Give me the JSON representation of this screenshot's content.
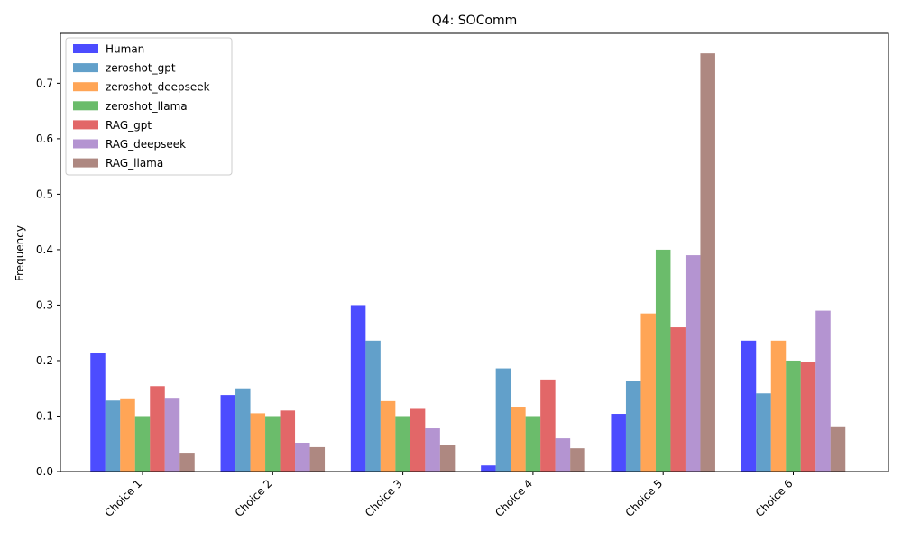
{
  "chart_data": {
    "type": "bar",
    "title": "Q4: SOComm",
    "xlabel": "",
    "ylabel": "Frequency",
    "ylim": [
      0,
      0.79
    ],
    "yticks": [
      0.0,
      0.1,
      0.2,
      0.3,
      0.4,
      0.5,
      0.6,
      0.7
    ],
    "ytick_labels": [
      "0.0",
      "0.1",
      "0.2",
      "0.3",
      "0.4",
      "0.5",
      "0.6",
      "0.7"
    ],
    "categories": [
      "Choice 1",
      "Choice 2",
      "Choice 3",
      "Choice 4",
      "Choice 5",
      "Choice 6"
    ],
    "grid": false,
    "legend_position": "top-left",
    "series": [
      {
        "name": "Human",
        "color": "#0000ff",
        "values": [
          0.213,
          0.138,
          0.3,
          0.011,
          0.104,
          0.236
        ]
      },
      {
        "name": "zeroshot_gpt",
        "color": "#1f77b4",
        "values": [
          0.128,
          0.15,
          0.236,
          0.186,
          0.163,
          0.141
        ]
      },
      {
        "name": "zeroshot_deepseek",
        "color": "#ff7f0e",
        "values": [
          0.132,
          0.105,
          0.127,
          0.117,
          0.285,
          0.236
        ]
      },
      {
        "name": "zeroshot_llama",
        "color": "#2ca02c",
        "values": [
          0.1,
          0.1,
          0.1,
          0.1,
          0.4,
          0.2
        ]
      },
      {
        "name": "RAG_gpt",
        "color": "#d62728",
        "values": [
          0.154,
          0.11,
          0.113,
          0.166,
          0.26,
          0.197
        ]
      },
      {
        "name": "RAG_deepseek",
        "color": "#9467bd",
        "values": [
          0.133,
          0.052,
          0.078,
          0.06,
          0.39,
          0.29
        ]
      },
      {
        "name": "RAG_llama",
        "color": "#8c564b",
        "values": [
          0.034,
          0.044,
          0.048,
          0.042,
          0.754,
          0.08
        ]
      }
    ]
  }
}
